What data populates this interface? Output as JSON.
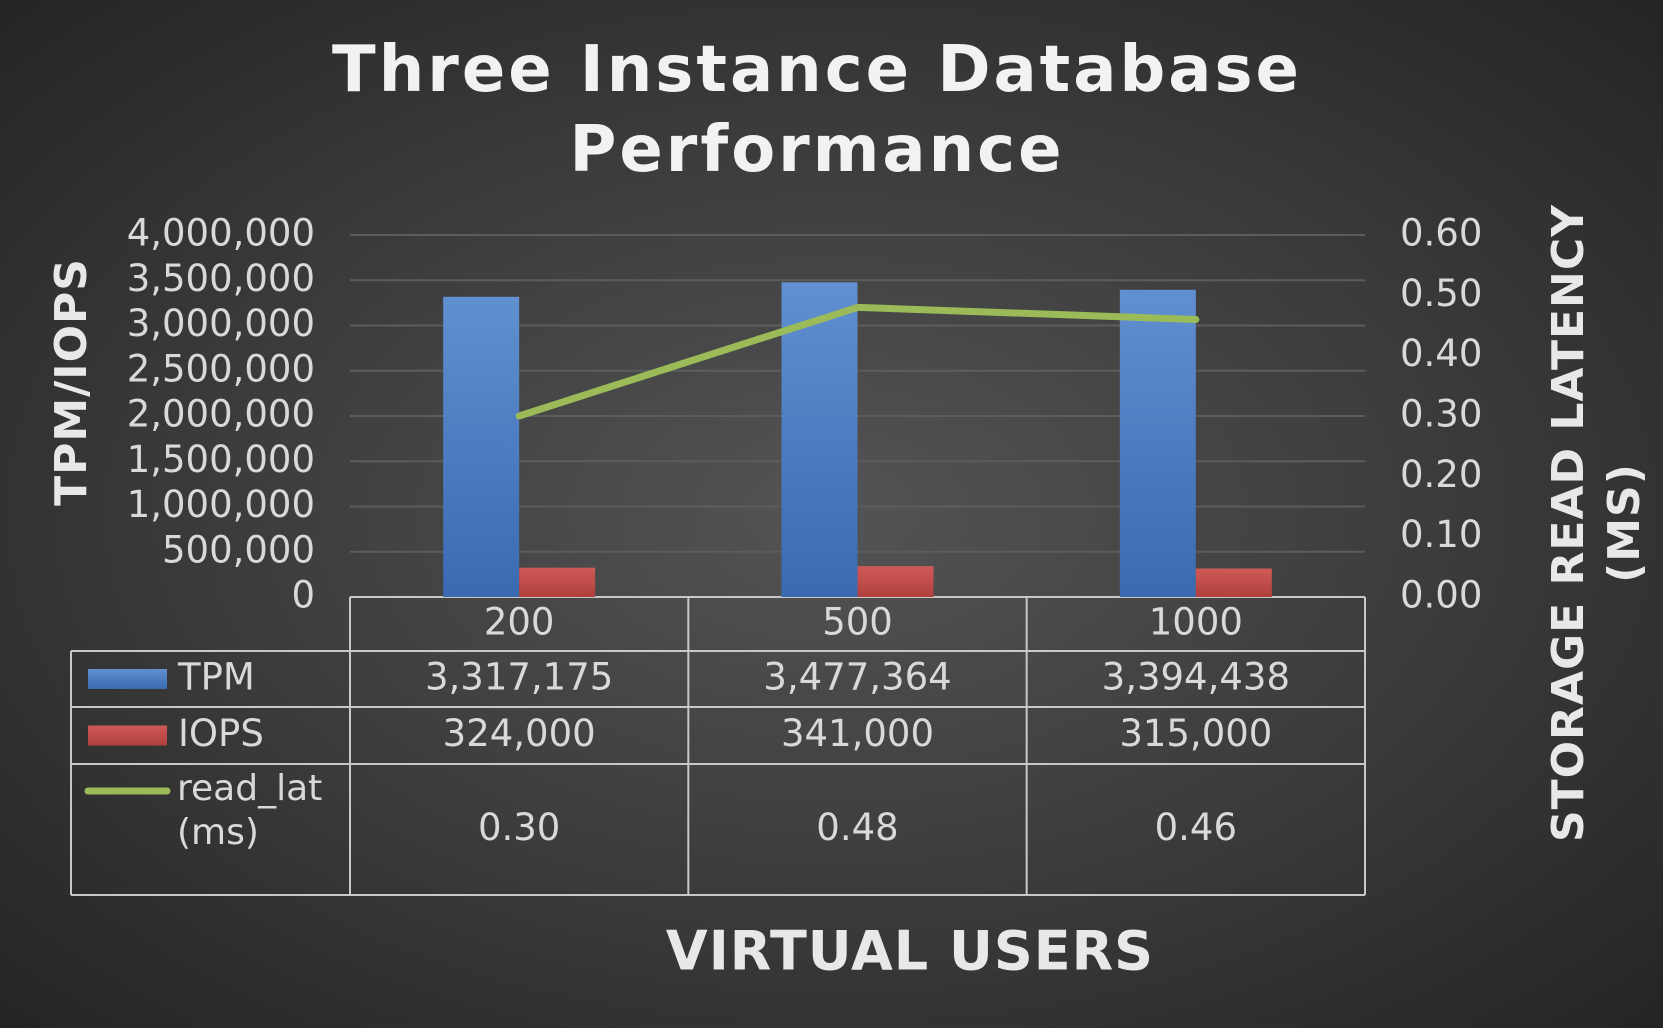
{
  "chart_data": {
    "type": "bar-line-table",
    "title": "Three Instance Database Performance",
    "x_label": "VIRTUAL USERS",
    "y_label": "TPM/IOPS",
    "y2_label": "STORAGE READ LATENCY (MS)",
    "categories": [
      "200",
      "500",
      "1000"
    ],
    "series": [
      {
        "name": "TPM",
        "type": "bar",
        "color": "#4f81bd",
        "values": [
          3317175,
          3477364,
          3394438
        ],
        "value_labels": [
          "3,317,175",
          "3,477,364",
          "3,394,438"
        ]
      },
      {
        "name": "IOPS",
        "type": "bar",
        "color": "#c0504d",
        "values": [
          324000,
          341000,
          315000
        ],
        "value_labels": [
          "324,000",
          "341,000",
          "315,000"
        ]
      },
      {
        "name": "read_lat (ms)",
        "type": "line",
        "axis": "y2",
        "color": "#9bbb59",
        "values": [
          0.3,
          0.48,
          0.46
        ],
        "value_labels": [
          "0.30",
          "0.48",
          "0.46"
        ]
      }
    ],
    "ylim": [
      0,
      4000000
    ],
    "yticks": [
      0,
      {
        "value": 500000,
        "label": "500,000"
      },
      {
        "value": 1000000,
        "label": "1,000,000"
      },
      {
        "value": 1500000,
        "label": "1,500,000"
      },
      {
        "value": 2000000,
        "label": "2,000,000"
      },
      {
        "value": 2500000,
        "label": "2,500,000"
      },
      {
        "value": 3000000,
        "label": "3,000,000"
      },
      {
        "value": 3500000,
        "label": "3,500,000"
      },
      {
        "value": 4000000,
        "label": "4,000,000"
      }
    ],
    "y2lim": [
      0,
      0.6
    ],
    "y2ticks": [
      {
        "value": 0,
        "label": "0.00"
      },
      {
        "value": 0.1,
        "label": "0.10"
      },
      {
        "value": 0.2,
        "label": "0.20"
      },
      {
        "value": 0.3,
        "label": "0.30"
      },
      {
        "value": 0.4,
        "label": "0.40"
      },
      {
        "value": 0.5,
        "label": "0.50"
      },
      {
        "value": 0.6,
        "label": "0.60"
      }
    ],
    "grid": true
  }
}
